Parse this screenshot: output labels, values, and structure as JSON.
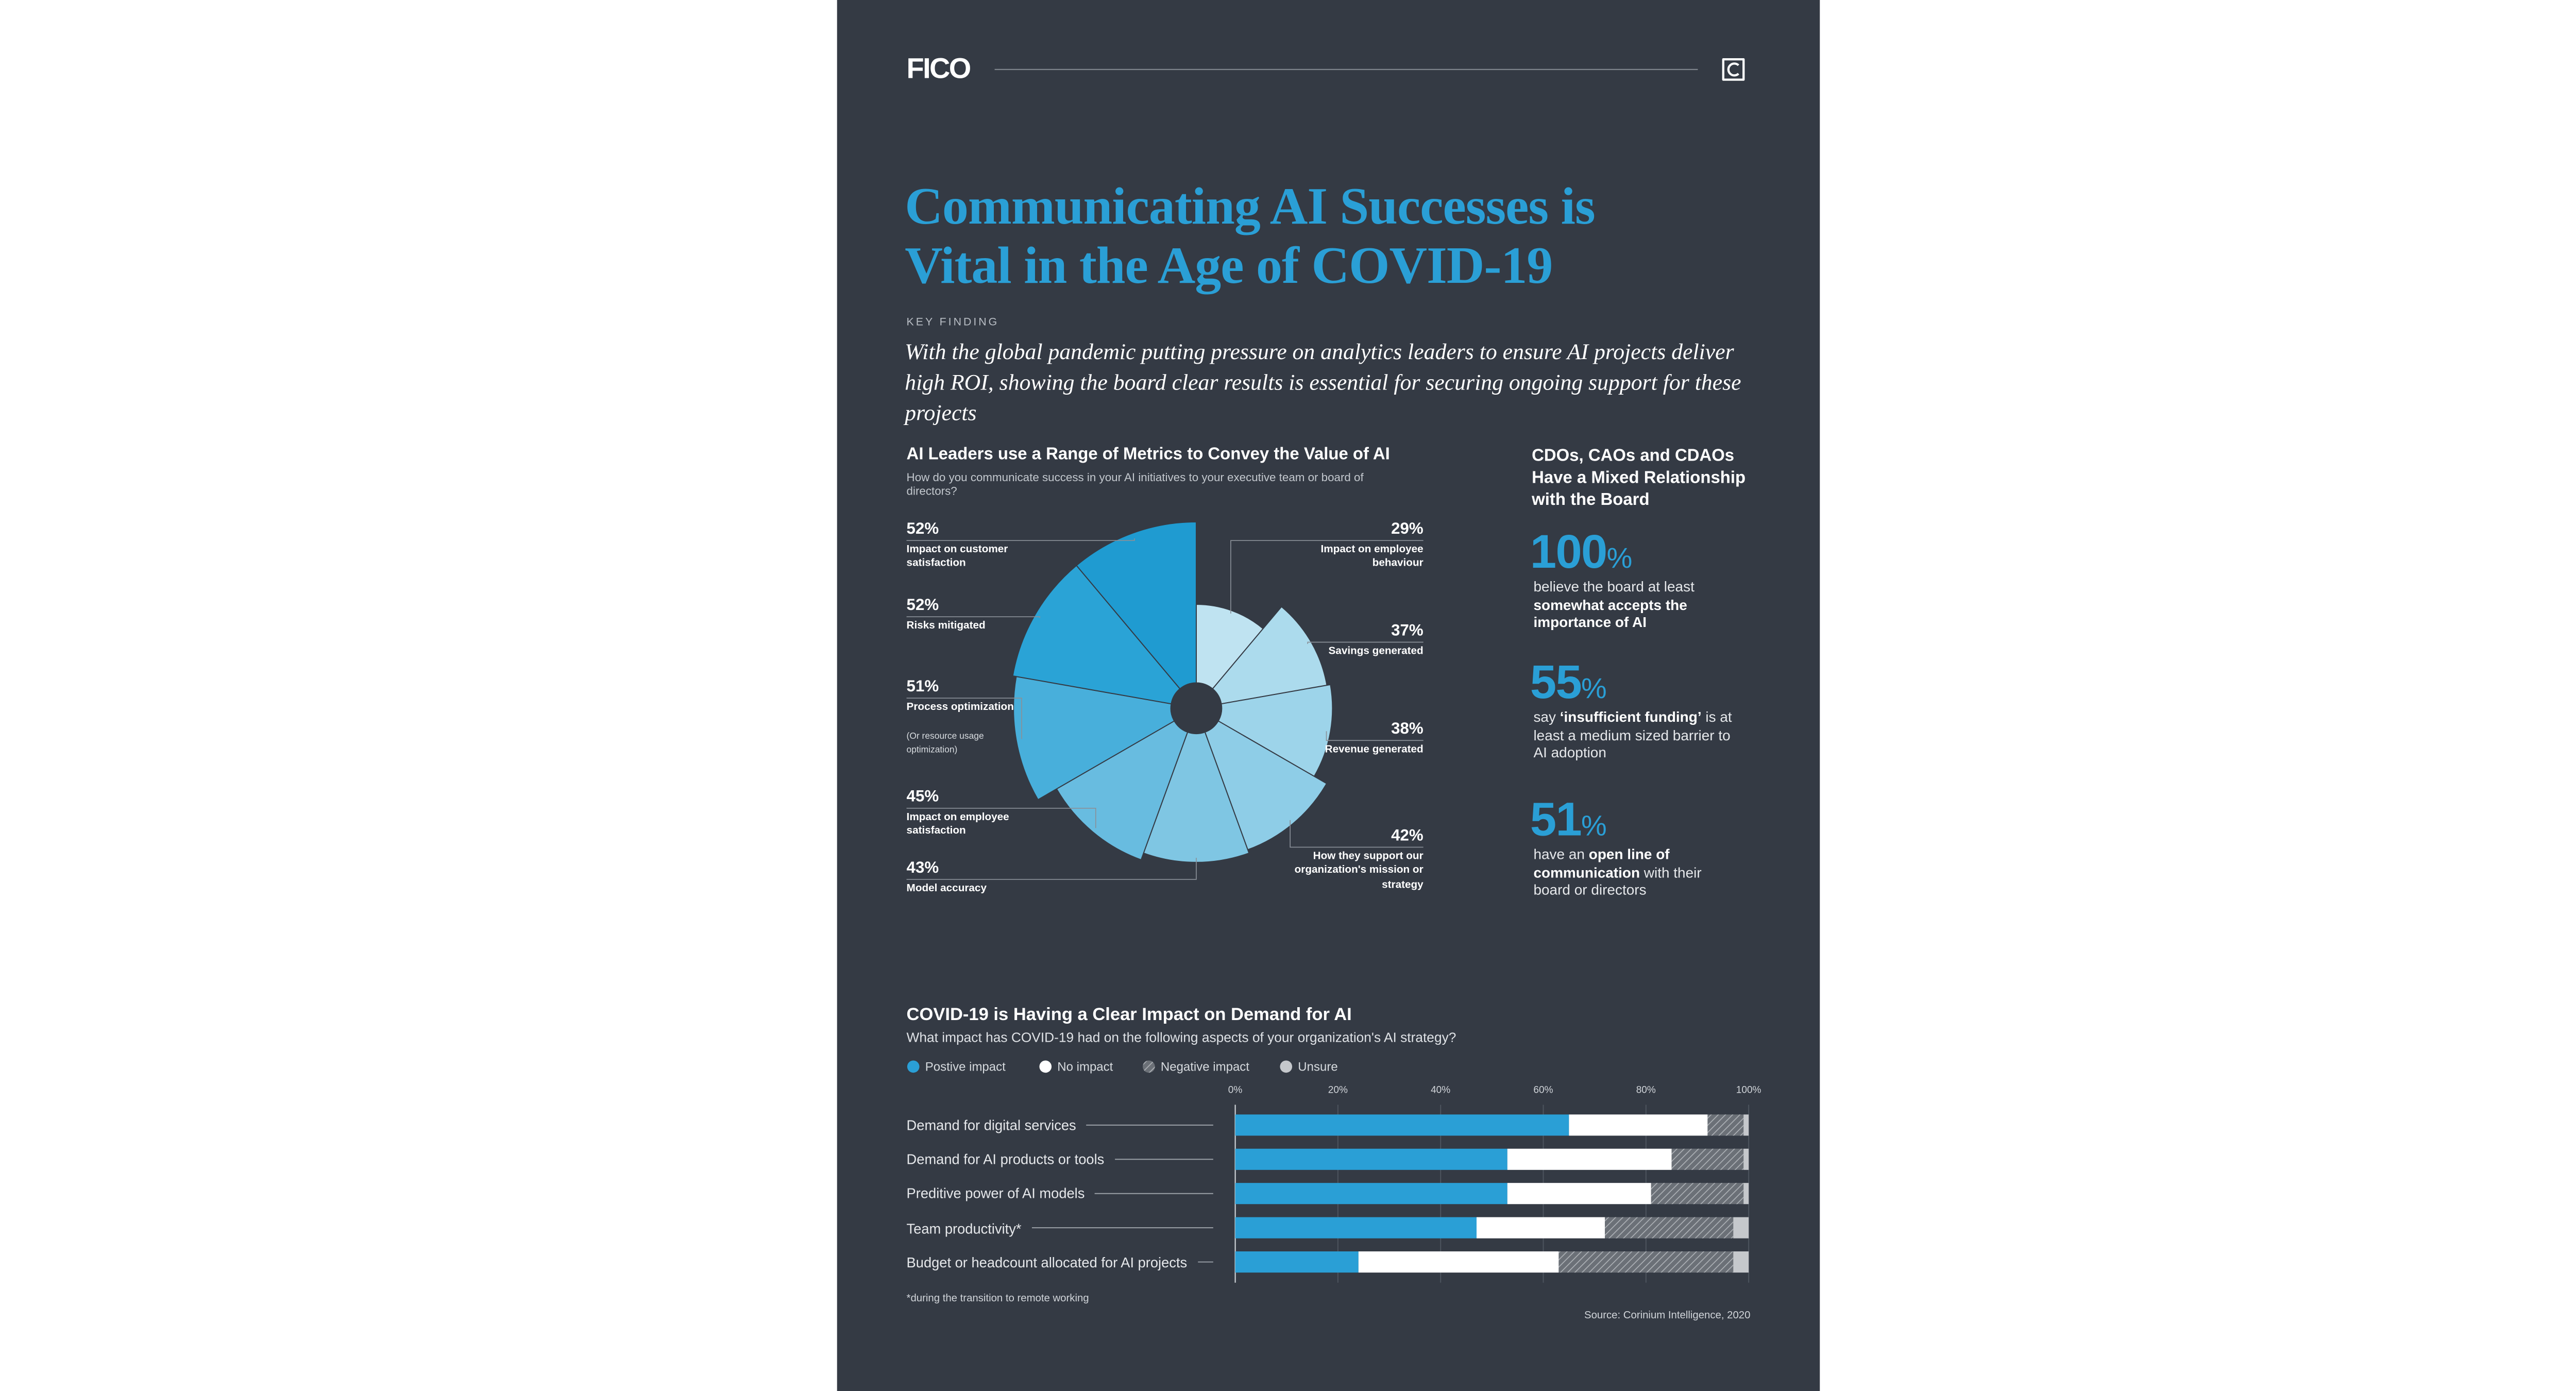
{
  "header": {
    "logo": "FICO"
  },
  "title": "Communicating AI Successes is Vital in the Age of COVID-19",
  "eyebrow": "KEY FINDING",
  "key_finding": "With the global pandemic putting pressure on analytics leaders to ensure AI projects deliver high ROI, showing the board clear results is essential for securing ongoing support for these projects",
  "chart_data": [
    {
      "type": "rose",
      "title": "AI Leaders use a Range of Metrics to Convey the Value of AI",
      "subtitle": "How do you communicate success in your AI initiatives to your executive team or board of directors?",
      "categories": [
        "Impact on employee behaviour",
        "Savings generated",
        "Revenue generated",
        "How they support our organization's mission or strategy",
        "Model accuracy",
        "Impact on employee satisfaction",
        "Process optimization",
        "Risks mitigated",
        "Impact on customer satisfaction"
      ],
      "notes": [
        null,
        null,
        null,
        null,
        null,
        null,
        "(Or resource usage optimization)",
        null,
        null
      ],
      "values": [
        29,
        37,
        38,
        42,
        43,
        45,
        51,
        52,
        52
      ],
      "value_labels": [
        "29%",
        "37%",
        "38%",
        "42%",
        "43%",
        "45%",
        "51%",
        "52%",
        "52%"
      ],
      "colors": [
        "#bfe3f1",
        "#acdbed",
        "#9dd4ea",
        "#8ecde7",
        "#7fc6e3",
        "#68bce0",
        "#48afdb",
        "#2aa3d6",
        "#1f9bd1"
      ]
    },
    {
      "type": "bar",
      "orientation": "horizontal",
      "stacked": true,
      "title": "COVID-19 is Having a Clear Impact on Demand for AI",
      "subtitle": "What impact has COVID-19 had on the following aspects of your organization's AI strategy?",
      "categories": [
        "Demand for digital services",
        "Demand for AI products or tools",
        "Preditive power of AI models",
        "Team productivity*",
        "Budget or headcount allocated for AI projects"
      ],
      "series": [
        {
          "name": "Postive impact",
          "color": "#2a9fd6",
          "values": [
            65,
            53,
            53,
            47,
            24
          ]
        },
        {
          "name": "No impact",
          "color": "#ffffff",
          "values": [
            27,
            32,
            28,
            25,
            39
          ]
        },
        {
          "name": "Negative impact",
          "color": "#6b7077",
          "hatch": true,
          "values": [
            7,
            14,
            18,
            25,
            34
          ]
        },
        {
          "name": "Unsure",
          "color": "#c5c8cc",
          "values": [
            1,
            1,
            1,
            3,
            3
          ]
        }
      ],
      "xlim": [
        0,
        100
      ],
      "xticks": [
        {
          "value": 0,
          "label": "0%"
        },
        {
          "value": 20,
          "label": "20%"
        },
        {
          "value": 40,
          "label": "40%"
        },
        {
          "value": 60,
          "label": "60%"
        },
        {
          "value": 80,
          "label": "80%"
        },
        {
          "value": 100,
          "label": "100%"
        }
      ],
      "grid": true,
      "footnote": "*during the transition to remote working",
      "source": "Source: Corinium Intelligence, 2020"
    }
  ],
  "stats": {
    "title": "CDOs, CAOs and CDAOs Have a Mixed Relationship with the Board",
    "items": [
      {
        "number": "100",
        "unit": "%",
        "parts": [
          {
            "text": "believe the board at least "
          },
          {
            "text": "somewhat accepts the importance of AI",
            "bold": true
          }
        ]
      },
      {
        "number": "55",
        "unit": "%",
        "parts": [
          {
            "text": "say "
          },
          {
            "text": "‘insufficient funding’",
            "bold": true
          },
          {
            "text": " is at least a medium sized barrier to AI adoption"
          }
        ]
      },
      {
        "number": "51",
        "unit": "%",
        "parts": [
          {
            "text": "have an "
          },
          {
            "text": "open line of communication",
            "bold": true
          },
          {
            "text": " with their board or directors"
          }
        ]
      }
    ]
  }
}
